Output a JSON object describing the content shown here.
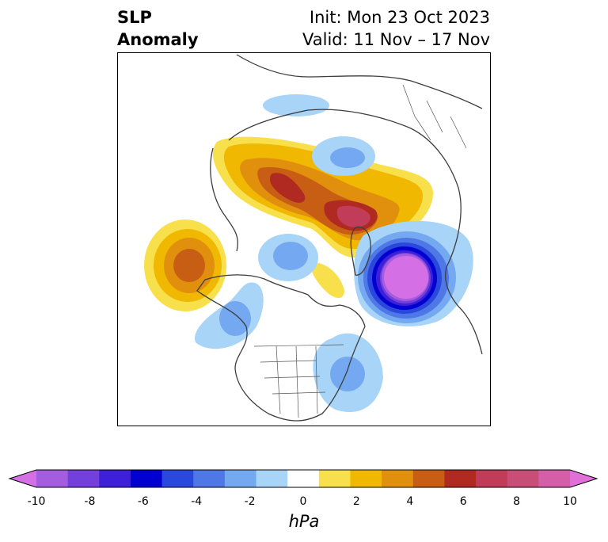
{
  "title": {
    "left_line1": "SLP",
    "left_line2": "Anomaly",
    "right_line1": "Init: Mon 23 Oct 2023",
    "right_line2": "Valid: 11 Nov – 17 Nov"
  },
  "colorbar": {
    "unit": "hPa",
    "ticks": [
      "-10",
      "-8",
      "-6",
      "-4",
      "-2",
      "0",
      "2",
      "4",
      "6",
      "8",
      "10"
    ],
    "range": [
      -10,
      10
    ],
    "extend": "both",
    "colors": [
      "#d46fe6",
      "#a45ddf",
      "#7340dc",
      "#3e20d8",
      "#0000d0",
      "#2a48dc",
      "#4f78e6",
      "#74a8f0",
      "#a8d4f8",
      "#ffffff",
      "#f8e04c",
      "#f0b800",
      "#e0900c",
      "#c85e14",
      "#b02a22",
      "#c03c58",
      "#c84e78",
      "#d45ea8",
      "#e070d8"
    ]
  },
  "map": {
    "projection": "north-polar stereographic",
    "region": "Northern Hemisphere (North America, Arctic, Eurasia)",
    "features": [
      {
        "name": "positive-anomaly-siberia-arctic",
        "sign": "positive",
        "peak_hPa": 7
      },
      {
        "name": "positive-anomaly-north-pacific",
        "sign": "positive",
        "peak_hPa": 5
      },
      {
        "name": "negative-anomaly-north-atlantic",
        "sign": "negative",
        "peak_hPa": -10
      },
      {
        "name": "negative-anomaly-eastern-us",
        "sign": "negative",
        "peak_hPa": -3
      }
    ]
  }
}
